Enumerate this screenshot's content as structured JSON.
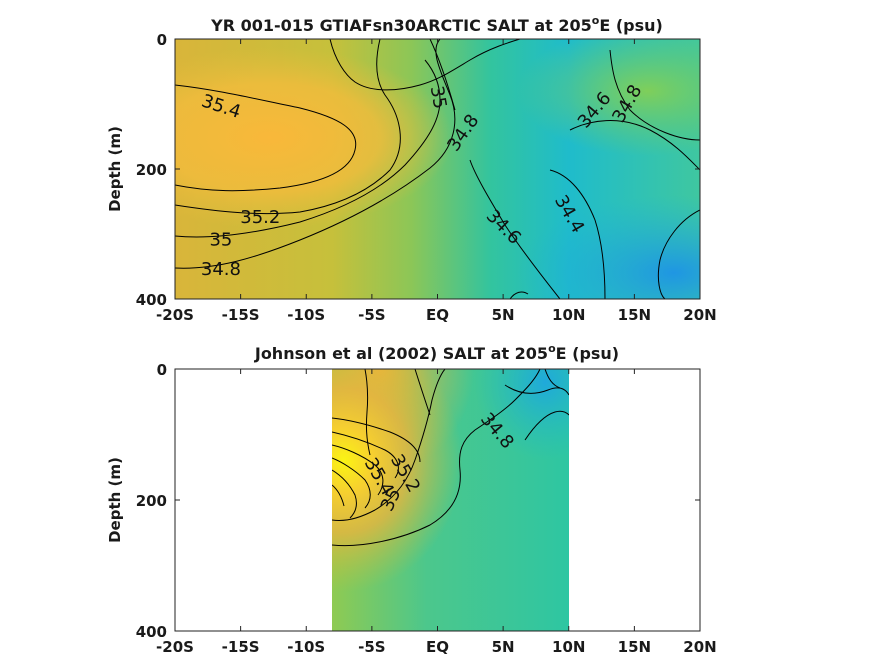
{
  "chart_data": [
    {
      "type": "heatmap",
      "title": "YR 001-015 GTIAFsn30ARCTIC SALT at 205",
      "title_sup": "o",
      "title_tail": "E (psu)",
      "ylabel": "Depth (m)",
      "xlabel": "",
      "x_ticks": [
        -20,
        -15,
        -10,
        -5,
        0,
        5,
        10,
        15,
        20
      ],
      "x_tick_labels": [
        "-20S",
        "-15S",
        "-10S",
        "-5S",
        "EQ",
        "5N",
        "10N",
        "15N",
        "20N"
      ],
      "y_ticks": [
        0,
        200,
        400
      ],
      "y_tick_labels": [
        "0",
        "200",
        "400"
      ],
      "xlim": [
        -20,
        20
      ],
      "ylim": [
        400,
        0
      ],
      "data_extent": [
        -20,
        20
      ],
      "contour_labels": [
        {
          "text": "35.4",
          "x": -16.5,
          "depth": 105,
          "angle": 18
        },
        {
          "text": "35.2",
          "x": -13.5,
          "depth": 275,
          "angle": 0
        },
        {
          "text": "35",
          "x": -16.5,
          "depth": 310,
          "angle": 0
        },
        {
          "text": "34.8",
          "x": -16.5,
          "depth": 355,
          "angle": 0
        },
        {
          "text": "35",
          "x": 0,
          "depth": 90,
          "angle": 80
        },
        {
          "text": "34.8",
          "x": 2,
          "depth": 145,
          "angle": -55
        },
        {
          "text": "34.6",
          "x": 5,
          "depth": 290,
          "angle": 45
        },
        {
          "text": "34.4",
          "x": 10,
          "depth": 270,
          "angle": 60
        },
        {
          "text": "34.6",
          "x": 12,
          "depth": 110,
          "angle": -50
        },
        {
          "text": "34.8",
          "x": 14.5,
          "depth": 100,
          "angle": -60
        }
      ]
    },
    {
      "type": "heatmap",
      "title": "Johnson et al (2002) SALT at 205",
      "title_sup": "o",
      "title_tail": "E (psu)",
      "ylabel": "Depth (m)",
      "xlabel": "",
      "x_ticks": [
        -20,
        -15,
        -10,
        -5,
        0,
        5,
        10,
        15,
        20
      ],
      "x_tick_labels": [
        "-20S",
        "-15S",
        "-10S",
        "-5S",
        "EQ",
        "5N",
        "10N",
        "15N",
        "20N"
      ],
      "y_ticks": [
        0,
        200,
        400
      ],
      "y_tick_labels": [
        "0",
        "200",
        "400"
      ],
      "xlim": [
        -20,
        20
      ],
      "ylim": [
        400,
        0
      ],
      "data_extent": [
        -8,
        10
      ],
      "contour_labels": [
        {
          "text": "34.8",
          "x": 4.5,
          "depth": 95,
          "angle": 50
        },
        {
          "text": "35",
          "x": -3.5,
          "depth": 200,
          "angle": -65
        },
        {
          "text": "35.2",
          "x": -2.5,
          "depth": 160,
          "angle": 60
        },
        {
          "text": "35.4",
          "x": -4.5,
          "depth": 165,
          "angle": 60
        }
      ]
    }
  ]
}
